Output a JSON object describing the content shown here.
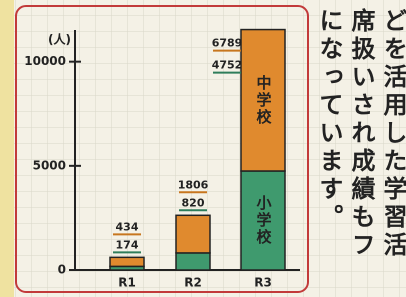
{
  "chart_data": {
    "type": "stacked_bar",
    "y_label": "(人)",
    "categories": [
      "R1",
      "R2",
      "R3"
    ],
    "series": [
      {
        "name": "小学校",
        "color": "#3f9a6e",
        "values": [
          174,
          820,
          4752
        ]
      },
      {
        "name": "中学校",
        "color": "#e08a2e",
        "values": [
          434,
          1806,
          6789
        ]
      }
    ],
    "ylim": [
      0,
      12000
    ],
    "yticks": [
      0,
      5000,
      10000
    ],
    "grid": false
  },
  "side_text": {
    "columns": [
      "どを活用した学習活",
      "席扱いされ成績もフ",
      "になっています。"
    ]
  }
}
